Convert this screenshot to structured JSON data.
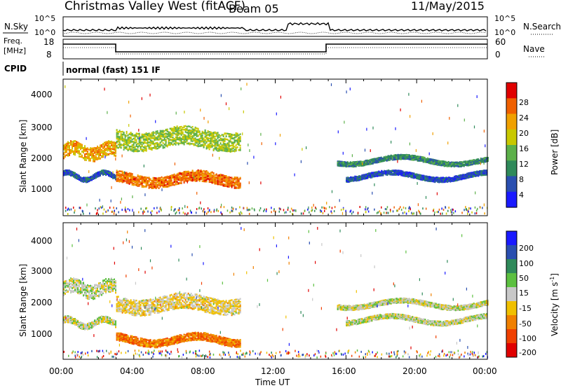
{
  "header": {
    "station": "Christmas Valley West (fitACF)",
    "beam": "Beam 05",
    "date": "11/May/2015"
  },
  "panels": {
    "nsky_label": "N.Sky",
    "nsearch_label": "N.Search",
    "freq_label_1": "Freq.",
    "freq_label_2": "[MHz]",
    "nave_label": "Nave",
    "cpid_label": "CPID",
    "cpid_value": "normal (fast) 151 IF",
    "noise_ticks_left": [
      "10^5",
      "10^0"
    ],
    "noise_ticks_right": [
      "10^5",
      "10^0"
    ],
    "freq_ticks": [
      "18",
      "8"
    ],
    "nave_ticks": [
      "60",
      "0"
    ]
  },
  "colors": {
    "power_scale": [
      "#1a1aff",
      "#2a4fb0",
      "#2f8a5a",
      "#5cb04a",
      "#c8c800",
      "#f0a000",
      "#f06000",
      "#e00000"
    ],
    "velocity_scale": [
      "#1a1aff",
      "#2a4fb0",
      "#2f8a5a",
      "#5cc040",
      "#c8c8c8",
      "#f0c000",
      "#f08000",
      "#f04000",
      "#e00000"
    ]
  },
  "chart_data": [
    {
      "type": "heatmap",
      "name": "power",
      "ylabel": "Slant Range [km]",
      "yticks": [
        "4000",
        "3000",
        "2000",
        "1000"
      ],
      "ylim": [
        200,
        4600
      ],
      "xlim": [
        0,
        24
      ],
      "colorbar_label": "Power [dB]",
      "colorbar_ticks": [
        "28",
        "24",
        "20",
        "16",
        "12",
        "8",
        "4"
      ],
      "bands": [
        {
          "x": [
            0,
            3
          ],
          "y_center": 2300,
          "width": 450,
          "value": 22
        },
        {
          "x": [
            0,
            3
          ],
          "y_center": 1500,
          "width": 150,
          "value": 6
        },
        {
          "x": [
            3,
            10
          ],
          "y_center": 1400,
          "width": 350,
          "value": 25
        },
        {
          "x": [
            3,
            10
          ],
          "y_center": 2700,
          "width": 600,
          "value": 16
        },
        {
          "x": [
            15.5,
            24
          ],
          "y_center": 2000,
          "width": 150,
          "value": 10
        },
        {
          "x": [
            16,
            24
          ],
          "y_center": 1500,
          "width": 150,
          "value": 6
        }
      ]
    },
    {
      "type": "heatmap",
      "name": "velocity",
      "ylabel": "Slant Range [km]",
      "yticks": [
        "4000",
        "3000",
        "2000",
        "1000"
      ],
      "ylim": [
        200,
        4600
      ],
      "xlim": [
        0,
        24
      ],
      "xticks": [
        "00:00",
        "04:00",
        "08:00",
        "12:00",
        "16:00",
        "20:00",
        "00:00"
      ],
      "xlabel": "Time UT",
      "colorbar_label": "Velocity [m s",
      "colorbar_label_sup": "-1",
      "colorbar_ticks": [
        "200",
        "100",
        "50",
        "15",
        "-15",
        "-50",
        "-100",
        "-200"
      ],
      "bands": [
        {
          "x": [
            0,
            3
          ],
          "y_center": 2500,
          "width": 450,
          "value": 0
        },
        {
          "x": [
            0,
            3
          ],
          "y_center": 1400,
          "width": 200,
          "value": 0
        },
        {
          "x": [
            3,
            10
          ],
          "y_center": 850,
          "width": 250,
          "value": -120
        },
        {
          "x": [
            3,
            10
          ],
          "y_center": 2000,
          "width": 500,
          "value": -30
        },
        {
          "x": [
            15.5,
            24
          ],
          "y_center": 2000,
          "width": 150,
          "value": 0
        },
        {
          "x": [
            16,
            24
          ],
          "y_center": 1500,
          "width": 150,
          "value": 0
        }
      ]
    }
  ]
}
